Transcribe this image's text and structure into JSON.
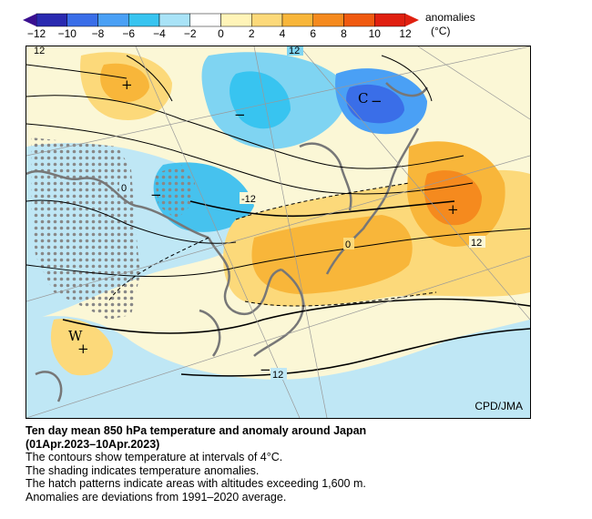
{
  "colorbar": {
    "unit_label": "anomalies",
    "unit": "(°C)",
    "ticks": [
      "−12",
      "−10",
      "−8",
      "−6",
      "−4",
      "−2",
      "0",
      "2",
      "4",
      "6",
      "8",
      "10",
      "12"
    ],
    "colors": [
      "#2a2ab0",
      "#3a6ee8",
      "#4aa0f5",
      "#38c4f0",
      "#a9e3f7",
      "#ffffff",
      "#fff4b8",
      "#fcd97a",
      "#f8b63a",
      "#f58a1e",
      "#f05a10",
      "#e02010"
    ]
  },
  "map": {
    "markers": {
      "w": "W",
      "c": "C",
      "plus": "+",
      "minus": "−"
    },
    "contour_labels": {
      "top_left": "12",
      "top_center": "12",
      "mid_zero": "0",
      "mid_minus12": "-12",
      "east_zero": "0",
      "east_12": "12",
      "south_minus12": "12"
    },
    "credit": "CPD/JMA"
  },
  "caption": {
    "title": "Ten day mean 850 hPa temperature and anomaly around Japan",
    "period": "(01Apr.2023–10Apr.2023)",
    "line1": "The contours show temperature at intervals of 4°C.",
    "line2": "The shading indicates temperature anomalies.",
    "line3": "The hatch patterns indicate areas with altitudes exceeding 1,600 m.",
    "line4": "Anomalies are deviations from 1991–2020 average."
  }
}
